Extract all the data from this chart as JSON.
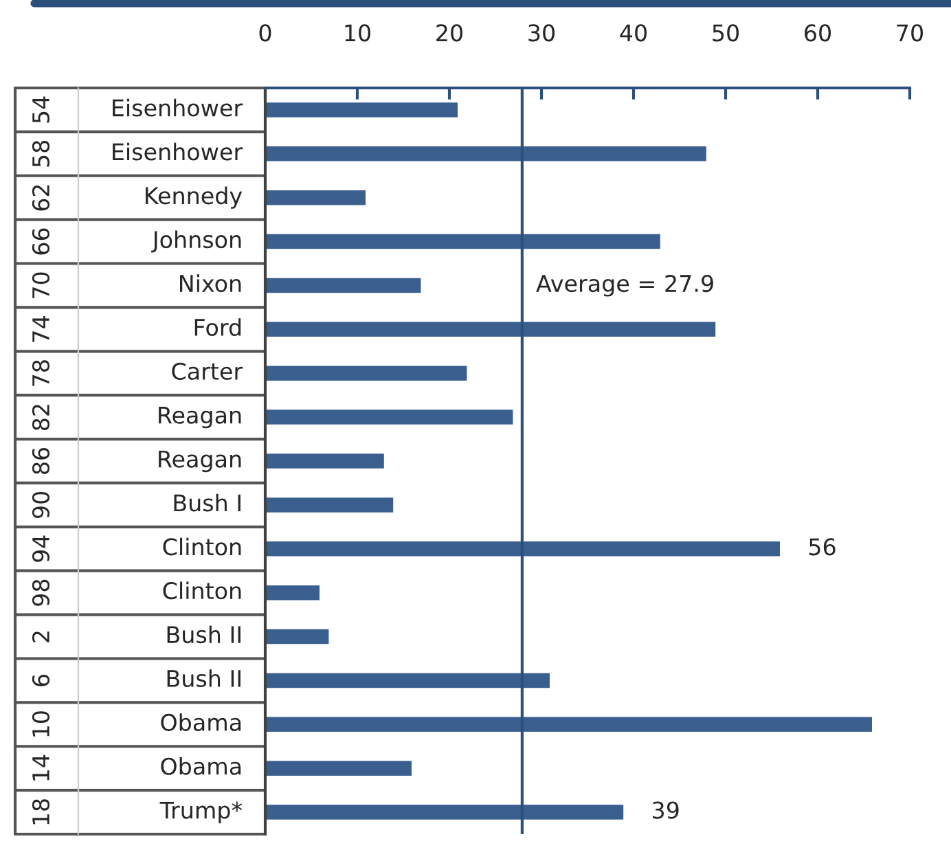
{
  "chart_data": {
    "type": "bar",
    "orientation": "horizontal",
    "categories": [
      "Eisenhower",
      "Eisenhower",
      "Kennedy",
      "Johnson",
      "Nixon",
      "Ford",
      "Carter",
      "Reagan",
      "Reagan",
      "Bush I",
      "Clinton",
      "Clinton",
      "Bush II",
      "Bush II",
      "Obama",
      "Obama",
      "Trump*"
    ],
    "values": [
      21,
      48,
      11,
      43,
      17,
      49,
      22,
      27,
      13,
      14,
      56,
      6,
      7,
      31,
      66,
      16,
      39
    ],
    "value_labels": [
      null,
      null,
      null,
      null,
      null,
      null,
      null,
      null,
      null,
      null,
      "56",
      null,
      null,
      null,
      null,
      null,
      "39"
    ],
    "color": "#3a5f8f",
    "annotations": [
      "54",
      "58",
      "62",
      "66",
      "70",
      "74",
      "78",
      "82",
      "86",
      "90",
      "94",
      "98",
      "2",
      "6",
      "10",
      "14",
      "18"
    ],
    "ref_lines": [
      {
        "axis": "x",
        "value": 27.9,
        "label": "Average = 27.9",
        "color": "#2d4f7c"
      }
    ],
    "xlim": [
      0,
      70
    ],
    "xticks": [
      0,
      10,
      20,
      30,
      40,
      50,
      60,
      70
    ],
    "grid": false
  }
}
